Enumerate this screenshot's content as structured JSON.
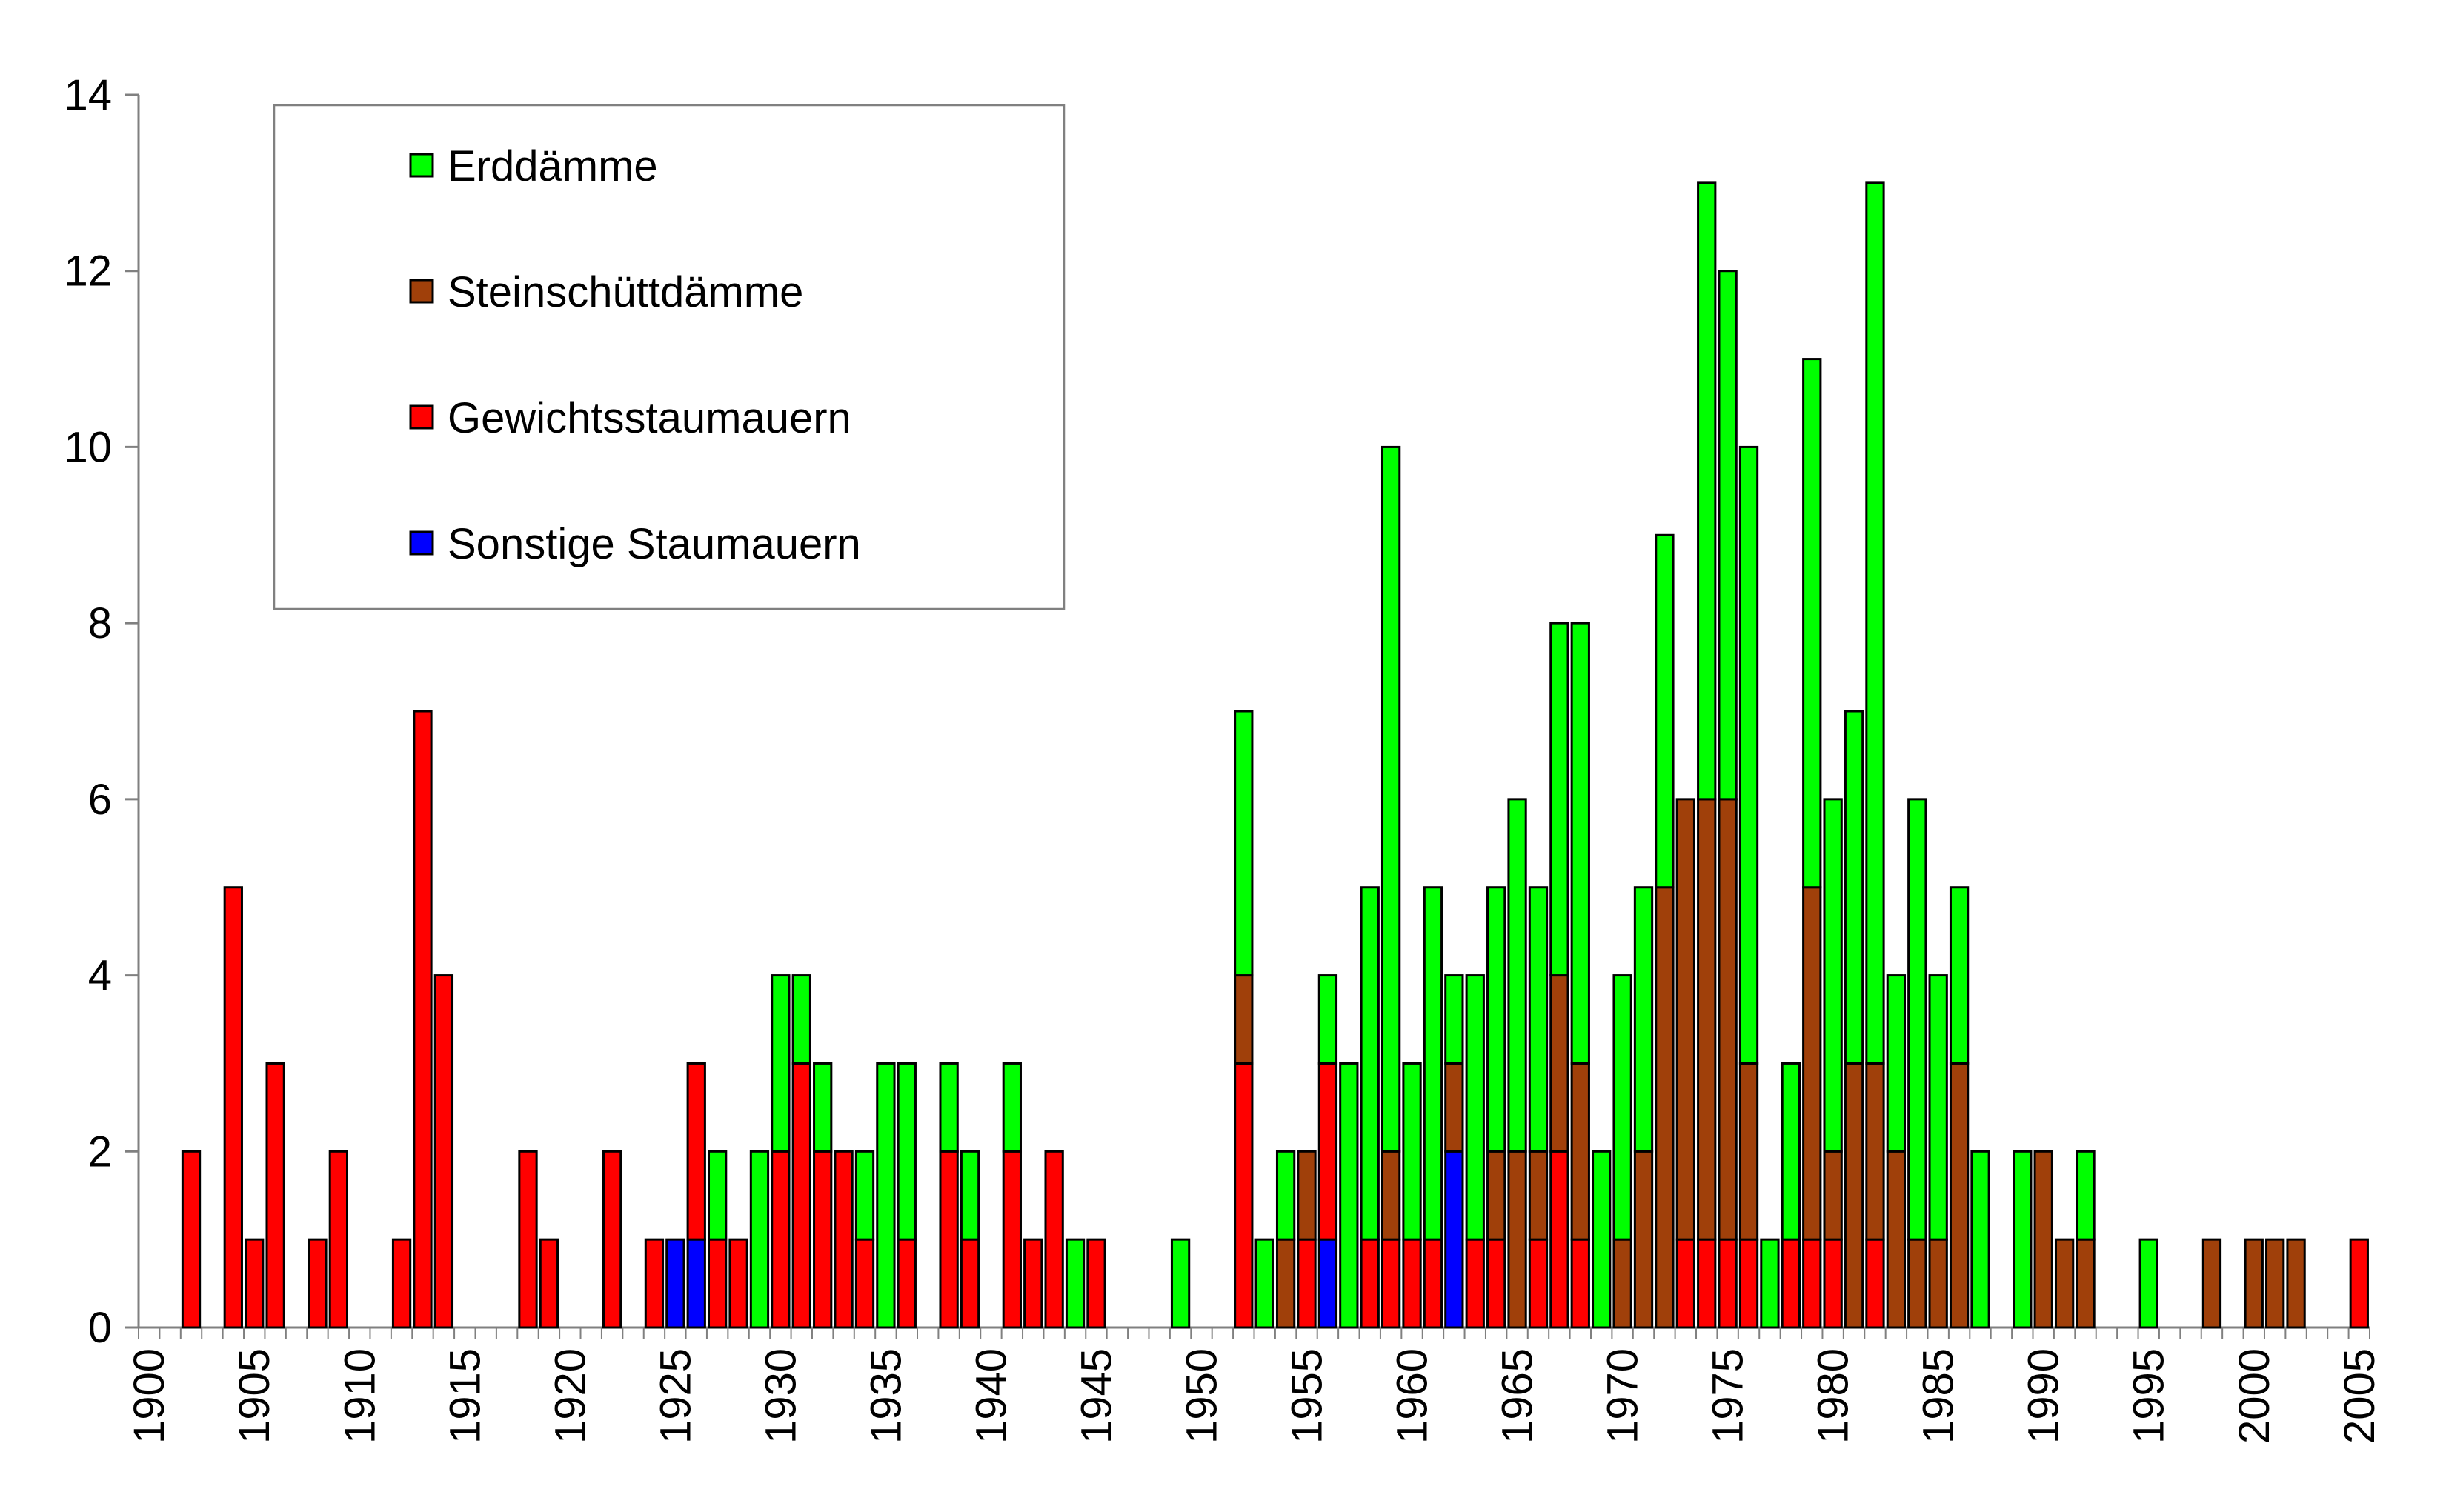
{
  "chart_data": {
    "type": "bar",
    "stacked": true,
    "title": "",
    "xlabel": "",
    "ylabel": "",
    "x_range": [
      1900,
      2005
    ],
    "ylim": [
      0,
      14
    ],
    "y_ticks": [
      0,
      2,
      4,
      6,
      8,
      10,
      12,
      14
    ],
    "x_tick_labels": [
      "1900",
      "1905",
      "1910",
      "1915",
      "1920",
      "1925",
      "1930",
      "1935",
      "1940",
      "1945",
      "1950",
      "1955",
      "1960",
      "1965",
      "1970",
      "1975",
      "1980",
      "1985",
      "1990",
      "1995",
      "2000",
      "2005"
    ],
    "legend_position": "top-left",
    "series": [
      {
        "name": "Sonstige Staumauern",
        "color": "#0000ff",
        "values": {
          "1925": 1,
          "1926": 1,
          "1956": 1,
          "1962": 2
        }
      },
      {
        "name": "Gewichtsstaumauern",
        "color": "#ff0000",
        "values": {
          "1902": 2,
          "1904": 5,
          "1905": 1,
          "1906": 3,
          "1908": 1,
          "1909": 2,
          "1912": 1,
          "1913": 7,
          "1914": 4,
          "1918": 2,
          "1919": 1,
          "1922": 2,
          "1924": 1,
          "1926": 2,
          "1927": 1,
          "1928": 1,
          "1930": 2,
          "1931": 3,
          "1932": 2,
          "1933": 2,
          "1934": 1,
          "1936": 1,
          "1938": 2,
          "1939": 1,
          "1941": 2,
          "1942": 1,
          "1943": 2,
          "1945": 1,
          "1952": 3,
          "1955": 1,
          "1956": 2,
          "1958": 1,
          "1959": 1,
          "1960": 1,
          "1961": 1,
          "1963": 1,
          "1964": 1,
          "1966": 1,
          "1967": 2,
          "1968": 1,
          "1973": 1,
          "1974": 1,
          "1975": 1,
          "1976": 1,
          "1978": 1,
          "1979": 1,
          "1980": 1,
          "1982": 1,
          "2005": 1
        }
      },
      {
        "name": "Steinschüttdämme",
        "color": "#a0400a",
        "values": {
          "1952": 1,
          "1954": 1,
          "1955": 1,
          "1959": 1,
          "1962": 1,
          "1964": 1,
          "1965": 2,
          "1966": 1,
          "1967": 2,
          "1968": 2,
          "1970": 1,
          "1971": 2,
          "1972": 5,
          "1973": 5,
          "1974": 5,
          "1975": 5,
          "1976": 2,
          "1979": 4,
          "1980": 1,
          "1981": 3,
          "1982": 2,
          "1983": 2,
          "1984": 1,
          "1985": 1,
          "1986": 3,
          "1990": 2,
          "1991": 1,
          "1992": 1,
          "1998": 1,
          "2000": 1,
          "2001": 1,
          "2002": 1
        }
      },
      {
        "name": "Erddämme",
        "color": "#00ff00",
        "values": {
          "1927": 1,
          "1929": 2,
          "1930": 2,
          "1931": 1,
          "1932": 1,
          "1934": 1,
          "1935": 3,
          "1936": 2,
          "1938": 1,
          "1939": 1,
          "1941": 1,
          "1944": 1,
          "1949": 1,
          "1952": 3,
          "1953": 1,
          "1954": 1,
          "1956": 1,
          "1957": 3,
          "1958": 4,
          "1959": 8,
          "1960": 2,
          "1961": 4,
          "1962": 1,
          "1963": 3,
          "1964": 3,
          "1965": 4,
          "1966": 3,
          "1967": 4,
          "1968": 5,
          "1969": 2,
          "1970": 3,
          "1971": 3,
          "1972": 4,
          "1973": 0,
          "1974": 7,
          "1975": 6,
          "1976": 7,
          "1977": 1,
          "1978": 2,
          "1979": 6,
          "1980": 4,
          "1981": 4,
          "1982": 10,
          "1983": 2,
          "1984": 5,
          "1985": 3,
          "1986": 2,
          "1987": 2,
          "1989": 2,
          "1992": 1,
          "1995": 1
        }
      }
    ]
  },
  "legend": {
    "items": [
      {
        "label": "Erddämme",
        "color": "#00ff00"
      },
      {
        "label": "Steinschüttdämme",
        "color": "#a0400a"
      },
      {
        "label": "Gewichtsstaumauern",
        "color": "#ff0000"
      },
      {
        "label": "Sonstige Staumauern",
        "color": "#0000ff"
      }
    ]
  }
}
